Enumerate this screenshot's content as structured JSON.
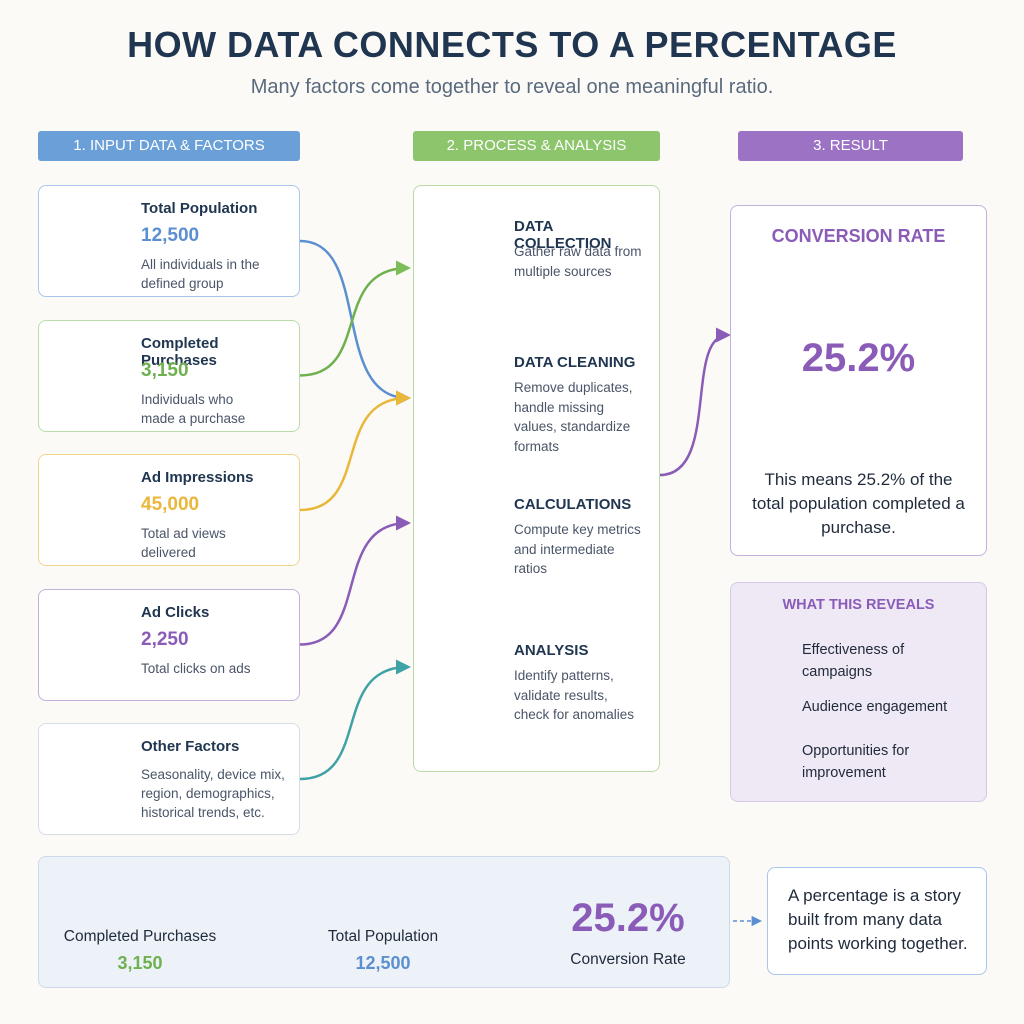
{
  "header": {
    "title": "HOW DATA CONNECTS TO A PERCENTAGE",
    "subtitle": "Many factors come together to reveal one meaningful ratio."
  },
  "columns": [
    "1. INPUT DATA & FACTORS",
    "2. PROCESS & ANALYSIS",
    "3. RESULT"
  ],
  "inputs": [
    {
      "title": "Total Population",
      "value": "12,500",
      "description": "All individuals in the defined group"
    },
    {
      "title": "Completed Purchases",
      "value": "3,150",
      "description": "Individuals who made a purchase"
    },
    {
      "title": "Ad Impressions",
      "value": "45,000",
      "description": "Total ad views delivered"
    },
    {
      "title": "Ad Clicks",
      "value": "2,250",
      "description": "Total clicks on ads"
    },
    {
      "title": "Other Factors",
      "description": "Seasonality, device mix, region, demographics, historical trends, etc."
    }
  ],
  "process": [
    {
      "title": "DATA COLLECTION",
      "description": "Gather raw data from multiple sources"
    },
    {
      "title": "DATA CLEANING",
      "description": "Remove duplicates, handle missing values, standardize formats"
    },
    {
      "title": "CALCULATIONS",
      "description": "Compute key metrics and intermediate ratios"
    },
    {
      "title": "ANALYSIS",
      "description": "Identify patterns, validate results, check for anomalies"
    }
  ],
  "result": {
    "title": "CONVERSION RATE",
    "value": 25.2,
    "label": "25.2%",
    "explanation": "This means 25.2% of the total population completed a purchase."
  },
  "reveals": {
    "title": "WHAT THIS REVEALS",
    "items": [
      "Effectiveness of campaigns",
      "Audience engagement",
      "Opportunities for improvement"
    ]
  },
  "formula": {
    "numerator": {
      "label": "Completed Purchases",
      "value": "3,150"
    },
    "denominator": {
      "label": "Total Population",
      "value": "12,500"
    },
    "result": {
      "value": "25.2%",
      "label": "Conversion Rate"
    }
  },
  "note": "A percentage is a story built from many data points working together."
}
